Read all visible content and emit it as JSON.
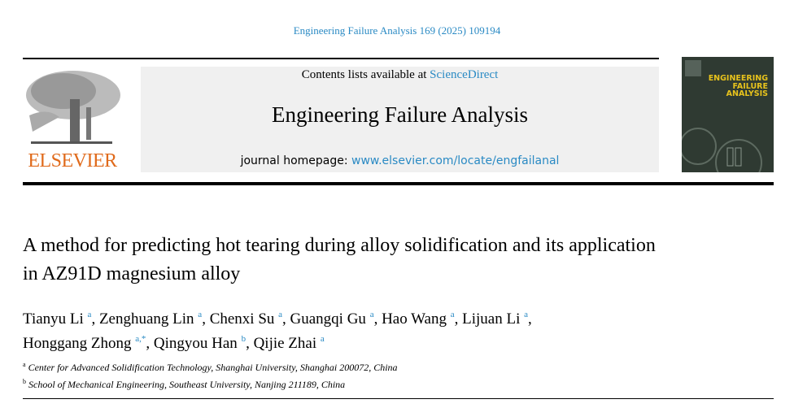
{
  "citation": "Engineering Failure Analysis 169 (2025) 109194",
  "publisher": "ELSEVIER",
  "banner": {
    "contents_prefix": "Contents lists available at ",
    "contents_link": "ScienceDirect",
    "journal": "Engineering Failure Analysis",
    "homepage_prefix": "journal homepage: ",
    "homepage_url": "www.elsevier.com/locate/engfailanal"
  },
  "cover": {
    "title_lines": [
      "ENGINEERING",
      "FAILURE",
      "ANALYSIS"
    ]
  },
  "title": "A method for predicting hot tearing during alloy solidification and its application in AZ91D magnesium alloy",
  "authors": [
    {
      "name": "Tianyu Li",
      "aff": "a"
    },
    {
      "name": "Zenghuang Lin",
      "aff": "a"
    },
    {
      "name": "Chenxi Su",
      "aff": "a"
    },
    {
      "name": "Guangqi Gu",
      "aff": "a"
    },
    {
      "name": "Hao Wang",
      "aff": "a"
    },
    {
      "name": "Lijuan Li",
      "aff": "a"
    },
    {
      "name": "Honggang Zhong",
      "aff": "a,*"
    },
    {
      "name": "Qingyou Han",
      "aff": "b"
    },
    {
      "name": "Qijie Zhai",
      "aff": "a"
    }
  ],
  "affiliations": [
    {
      "label": "a",
      "text": "Center for Advanced Solidification Technology, Shanghai University, Shanghai 200072, China"
    },
    {
      "label": "b",
      "text": "School of Mechanical Engineering, Southeast University, Nanjing 211189, China"
    }
  ],
  "colors": {
    "link": "#2a8ac4",
    "elsevier": "#e06a1b",
    "cover_bg": "#2f3a32",
    "cover_title": "#e7c21c"
  }
}
